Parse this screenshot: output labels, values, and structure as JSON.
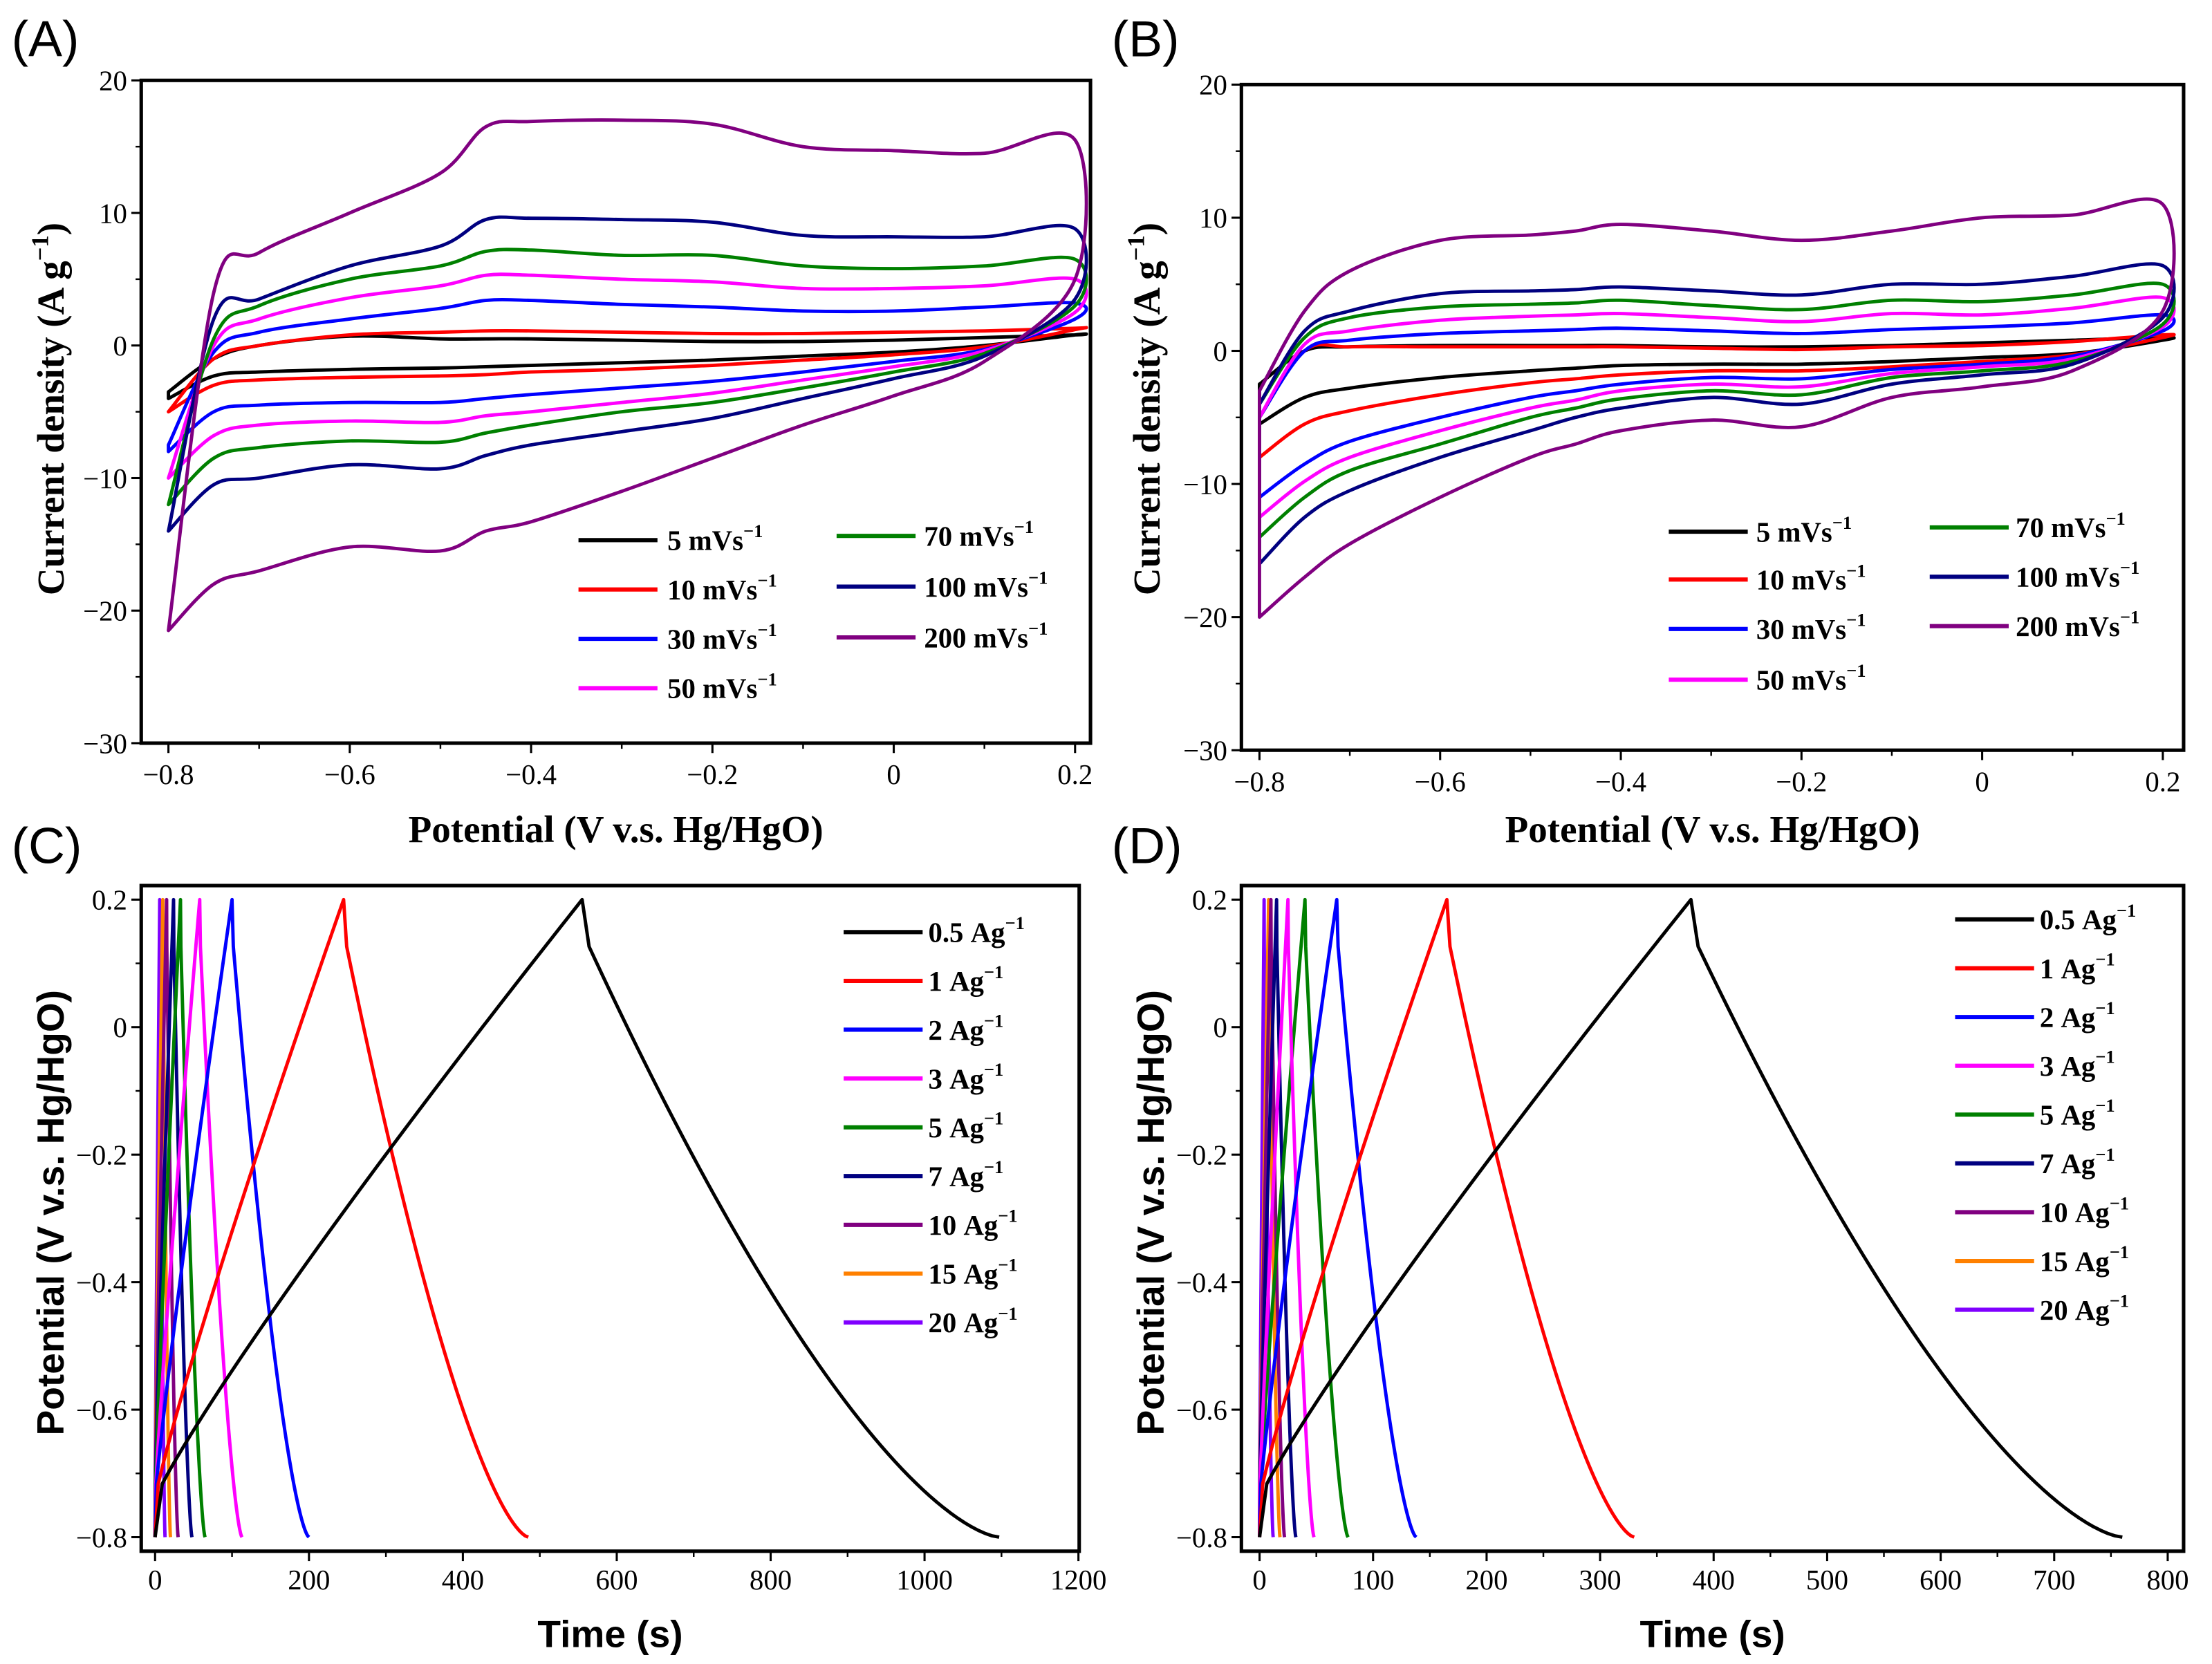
{
  "colors": {
    "black": "#000000",
    "red": "#ff0000",
    "blue": "#0000ff",
    "magenta": "#ff00ff",
    "green": "#008000",
    "navy": "#000080",
    "purple": "#800080",
    "orange": "#ff8000",
    "violet": "#8000ff"
  },
  "chart_data": [
    {
      "panel": "(A)",
      "type": "line",
      "xlabel": "Potential (V v.s. Hg/HgO)",
      "ylabel": {
        "text": "Current density (A g",
        "exp": "−1",
        "close": ")"
      },
      "xlim": [
        -0.83,
        0.217
      ],
      "ylim": [
        -30,
        20
      ],
      "xticks": [
        -0.8,
        -0.6,
        -0.4,
        -0.2,
        0,
        0.2
      ],
      "xtick_labels": [
        "−0.8",
        "−0.6",
        "−0.4",
        "−0.2",
        "0",
        "0.2"
      ],
      "yticks": [
        20,
        10,
        0,
        -10,
        -20,
        -30
      ],
      "ytick_labels": [
        "20",
        "10",
        "0",
        "−10",
        "−20",
        "−30"
      ],
      "potential_grid": [
        -0.8,
        -0.75,
        -0.7,
        -0.6,
        -0.5,
        -0.45,
        -0.4,
        -0.3,
        -0.2,
        -0.1,
        0,
        0.1,
        0.2
      ],
      "legend_columns": [
        [
          0,
          1,
          2,
          3
        ],
        [
          4,
          5,
          6
        ]
      ],
      "series": [
        {
          "name": "5",
          "unit": "mVs",
          "exp": "−1",
          "color": "#000000",
          "anodic": [
            -3.5,
            -1,
            0,
            0.7,
            0.5,
            0.5,
            0.5,
            0.4,
            0.3,
            0.3,
            0.4,
            0.6,
            0.8
          ],
          "cathodic": [
            -4,
            -2.3,
            -2,
            -1.8,
            -1.7,
            -1.6,
            -1.5,
            -1.3,
            -1.1,
            -0.8,
            -0.5,
            0,
            0.8
          ]
        },
        {
          "name": "10",
          "unit": "mVs",
          "exp": "−1",
          "color": "#ff0000",
          "anodic": [
            -5,
            -1,
            0,
            0.8,
            1,
            1.1,
            1.1,
            1,
            0.9,
            0.9,
            1,
            1.1,
            1.3
          ],
          "cathodic": [
            -5,
            -3,
            -2.6,
            -2.4,
            -2.3,
            -2.2,
            -2,
            -1.8,
            -1.5,
            -1.1,
            -0.7,
            -0.1,
            1.2
          ]
        },
        {
          "name": "30",
          "unit": "mVs",
          "exp": "−1",
          "color": "#0000ff",
          "anodic": [
            -7.5,
            -0.5,
            1,
            2,
            2.8,
            3.4,
            3.4,
            3.1,
            2.9,
            2.6,
            2.6,
            2.9,
            3.2
          ],
          "cathodic": [
            -8,
            -5,
            -4.5,
            -4.3,
            -4.3,
            -4,
            -3.7,
            -3.2,
            -2.7,
            -2,
            -1.2,
            -0.3,
            2
          ]
        },
        {
          "name": "50",
          "unit": "mVs",
          "exp": "−1",
          "color": "#ff00ff",
          "anodic": [
            -10,
            0,
            2,
            3.6,
            4.5,
            5.3,
            5.3,
            5,
            4.8,
            4.3,
            4.3,
            4.5,
            5
          ],
          "cathodic": [
            -10,
            -6.8,
            -6,
            -5.7,
            -5.8,
            -5.3,
            -5,
            -4.3,
            -3.6,
            -2.6,
            -1.6,
            -0.4,
            2.5
          ]
        },
        {
          "name": "70",
          "unit": "mVs",
          "exp": "−1",
          "color": "#008000",
          "anodic": [
            -12,
            0.5,
            3,
            5,
            6,
            7.1,
            7.2,
            6.8,
            6.8,
            6,
            5.8,
            6,
            6.5
          ],
          "cathodic": [
            -12,
            -8.5,
            -7.7,
            -7.2,
            -7.3,
            -6.6,
            -6,
            -5,
            -4.3,
            -3.2,
            -2,
            -0.6,
            3
          ]
        },
        {
          "name": "100",
          "unit": "mVs",
          "exp": "−1",
          "color": "#000080",
          "anodic": [
            -14,
            2,
            3.5,
            6,
            7.5,
            9.5,
            9.6,
            9.5,
            9.3,
            8.3,
            8.2,
            8.2,
            8.8
          ],
          "cathodic": [
            -14,
            -10.5,
            -10,
            -9,
            -9.3,
            -8.3,
            -7.5,
            -6.5,
            -5.5,
            -4,
            -2.5,
            -0.8,
            3.5
          ]
        },
        {
          "name": "200",
          "unit": "mVs",
          "exp": "−1",
          "color": "#800080",
          "anodic": [
            -21.5,
            4,
            7,
            10,
            13,
            16.5,
            16.9,
            17,
            16.7,
            15,
            14.7,
            14.5,
            15.5
          ],
          "cathodic": [
            -21.5,
            -18,
            -17,
            -15.2,
            -15.5,
            -14,
            -13.3,
            -11,
            -8.5,
            -6,
            -3.8,
            -1.2,
            5
          ]
        }
      ]
    },
    {
      "panel": "(B)",
      "type": "line",
      "xlabel": "Potential (V v.s. Hg/HgO)",
      "ylabel": {
        "text": "Current density (A g",
        "exp": "−1",
        "close": ")"
      },
      "xlim": [
        -0.82,
        0.223
      ],
      "ylim": [
        -30,
        20
      ],
      "xticks": [
        -0.8,
        -0.6,
        -0.4,
        -0.2,
        0,
        0.2
      ],
      "xtick_labels": [
        "−0.8",
        "−0.6",
        "−0.4",
        "−0.2",
        "0",
        "0.2"
      ],
      "yticks": [
        20,
        10,
        0,
        -10,
        -20,
        -30
      ],
      "ytick_labels": [
        "20",
        "10",
        "0",
        "−10",
        "−20",
        "−30"
      ],
      "potential_grid": [
        -0.8,
        -0.75,
        -0.7,
        -0.6,
        -0.5,
        -0.45,
        -0.4,
        -0.3,
        -0.2,
        -0.1,
        0,
        0.1,
        0.2
      ],
      "legend_columns": [
        [
          0,
          1,
          2,
          3
        ],
        [
          4,
          5,
          6
        ]
      ],
      "series": [
        {
          "name": "5",
          "unit": "mVs",
          "exp": "−1",
          "color": "#000000",
          "anodic": [
            -2.5,
            0,
            0.3,
            0.4,
            0.4,
            0.4,
            0.4,
            0.3,
            0.3,
            0.4,
            0.6,
            0.8,
            1
          ],
          "cathodic": [
            -5.5,
            -3.5,
            -2.8,
            -2,
            -1.5,
            -1.3,
            -1.1,
            -1,
            -1,
            -0.8,
            -0.5,
            -0.2,
            0.8
          ]
        },
        {
          "name": "10",
          "unit": "mVs",
          "exp": "−1",
          "color": "#ff0000",
          "anodic": [
            -5,
            0,
            0.3,
            0.3,
            0.3,
            0.3,
            0.3,
            0.2,
            0.1,
            0.3,
            0.4,
            0.7,
            1.2
          ],
          "cathodic": [
            -8,
            -5.5,
            -4.5,
            -3.3,
            -2.4,
            -2.1,
            -1.8,
            -1.5,
            -1.5,
            -1.2,
            -0.8,
            -0.3,
            1
          ]
        },
        {
          "name": "30",
          "unit": "mVs",
          "exp": "−1",
          "color": "#0000ff",
          "anodic": [
            -5,
            0,
            0.8,
            1.3,
            1.5,
            1.6,
            1.7,
            1.5,
            1.3,
            1.6,
            1.8,
            2.1,
            2.7
          ],
          "cathodic": [
            -11,
            -8.5,
            -6.8,
            -5,
            -3.5,
            -3,
            -2.5,
            -2,
            -2.1,
            -1.4,
            -1,
            -0.4,
            1.5
          ]
        },
        {
          "name": "50",
          "unit": "mVs",
          "exp": "−1",
          "color": "#ff00ff",
          "anodic": [
            -5,
            0.5,
            1.5,
            2.3,
            2.6,
            2.7,
            2.8,
            2.5,
            2.2,
            2.8,
            2.7,
            3.2,
            4
          ],
          "cathodic": [
            -12.5,
            -9.8,
            -8,
            -6,
            -4.3,
            -3.7,
            -3,
            -2.5,
            -2.7,
            -1.7,
            -1.2,
            -0.6,
            1.8
          ]
        },
        {
          "name": "70",
          "unit": "mVs",
          "exp": "−1",
          "color": "#008000",
          "anodic": [
            -4,
            1,
            2.5,
            3.3,
            3.5,
            3.6,
            3.8,
            3.4,
            3.1,
            3.8,
            3.7,
            4.2,
            5
          ],
          "cathodic": [
            -14,
            -11,
            -9,
            -7,
            -5,
            -4.3,
            -3.6,
            -3,
            -3.3,
            -2,
            -1.5,
            -0.8,
            2
          ]
        },
        {
          "name": "100",
          "unit": "mVs",
          "exp": "−1",
          "color": "#000080",
          "anodic": [
            -4,
            1.5,
            3,
            4.3,
            4.5,
            4.6,
            4.8,
            4.5,
            4.2,
            5,
            5,
            5.6,
            6.4
          ],
          "cathodic": [
            -16,
            -12.5,
            -10.5,
            -8,
            -6,
            -5,
            -4.3,
            -3.5,
            -4,
            -2.5,
            -1.8,
            -1,
            2.5
          ]
        },
        {
          "name": "200",
          "unit": "mVs",
          "exp": "−1",
          "color": "#800080",
          "anodic": [
            -3,
            3,
            6,
            8.3,
            8.7,
            9,
            9.5,
            9,
            8.3,
            9,
            10,
            10.2,
            11
          ],
          "cathodic": [
            -20,
            -17,
            -14.5,
            -11,
            -8,
            -7,
            -6,
            -5.2,
            -5.7,
            -3.5,
            -2.7,
            -1.5,
            3
          ]
        }
      ]
    },
    {
      "panel": "(C)",
      "type": "line",
      "xlabel": "Time (s)",
      "ylabel": {
        "text": "Potential (V v.s. Hg/HgO)",
        "exp": "",
        "close": ""
      },
      "xlim": [
        -18,
        1201
      ],
      "ylim": [
        -0.822,
        0.222
      ],
      "xticks": [
        0,
        200,
        400,
        600,
        800,
        1000,
        1200
      ],
      "xtick_labels": [
        "0",
        "200",
        "400",
        "600",
        "800",
        "1000",
        "1200"
      ],
      "yticks": [
        0.2,
        0,
        -0.2,
        -0.4,
        -0.6,
        -0.8
      ],
      "ytick_labels": [
        "0.2",
        "0",
        "−0.2",
        "−0.4",
        "−0.6",
        "−0.8"
      ],
      "potential_window_V": [
        -0.8,
        0.2
      ],
      "series": [
        {
          "name": "0.5",
          "unit": "Ag",
          "exp": "−1",
          "color": "#000000",
          "charge_end_s": 555,
          "discharge_end_s": 1097
        },
        {
          "name": "1",
          "unit": "Ag",
          "exp": "−1",
          "color": "#ff0000",
          "charge_end_s": 245,
          "discharge_end_s": 485
        },
        {
          "name": "2",
          "unit": "Ag",
          "exp": "−1",
          "color": "#0000ff",
          "charge_end_s": 100,
          "discharge_end_s": 200
        },
        {
          "name": "3",
          "unit": "Ag",
          "exp": "−1",
          "color": "#ff00ff",
          "charge_end_s": 58,
          "discharge_end_s": 113
        },
        {
          "name": "5",
          "unit": "Ag",
          "exp": "−1",
          "color": "#008000",
          "charge_end_s": 33,
          "discharge_end_s": 65
        },
        {
          "name": "7",
          "unit": "Ag",
          "exp": "−1",
          "color": "#000080",
          "charge_end_s": 24,
          "discharge_end_s": 48
        },
        {
          "name": "10",
          "unit": "Ag",
          "exp": "−1",
          "color": "#800080",
          "charge_end_s": 15,
          "discharge_end_s": 30
        },
        {
          "name": "15",
          "unit": "Ag",
          "exp": "−1",
          "color": "#ff8000",
          "charge_end_s": 10,
          "discharge_end_s": 20
        },
        {
          "name": "20",
          "unit": "Ag",
          "exp": "−1",
          "color": "#8000ff",
          "charge_end_s": 6,
          "discharge_end_s": 13
        }
      ]
    },
    {
      "panel": "(D)",
      "type": "line",
      "xlabel": "Time (s)",
      "ylabel": {
        "text": "Potential (V v.s. Hg/HgO)",
        "exp": "",
        "close": ""
      },
      "xlim": [
        -16,
        814
      ],
      "ylim": [
        -0.822,
        0.222
      ],
      "xticks": [
        0,
        100,
        200,
        300,
        400,
        500,
        600,
        700,
        800
      ],
      "xtick_labels": [
        "0",
        "100",
        "200",
        "300",
        "400",
        "500",
        "600",
        "700",
        "800"
      ],
      "yticks": [
        0.2,
        0,
        -0.2,
        -0.4,
        -0.6,
        -0.8
      ],
      "ytick_labels": [
        "0.2",
        "0",
        "−0.2",
        "−0.4",
        "−0.6",
        "−0.8"
      ],
      "potential_window_V": [
        -0.8,
        0.2
      ],
      "series": [
        {
          "name": "0.5",
          "unit": "Ag",
          "exp": "−1",
          "color": "#000000",
          "charge_end_s": 380,
          "discharge_end_s": 760
        },
        {
          "name": "1",
          "unit": "Ag",
          "exp": "−1",
          "color": "#ff0000",
          "charge_end_s": 165,
          "discharge_end_s": 330
        },
        {
          "name": "2",
          "unit": "Ag",
          "exp": "−1",
          "color": "#0000ff",
          "charge_end_s": 68,
          "discharge_end_s": 138
        },
        {
          "name": "3",
          "unit": "Ag",
          "exp": "−1",
          "color": "#ff00ff",
          "charge_end_s": 25,
          "discharge_end_s": 48
        },
        {
          "name": "5",
          "unit": "Ag",
          "exp": "−1",
          "color": "#008000",
          "charge_end_s": 40,
          "discharge_end_s": 78
        },
        {
          "name": "7",
          "unit": "Ag",
          "exp": "−1",
          "color": "#000080",
          "charge_end_s": 15,
          "discharge_end_s": 32
        },
        {
          "name": "10",
          "unit": "Ag",
          "exp": "−1",
          "color": "#800080",
          "charge_end_s": 10,
          "discharge_end_s": 22
        },
        {
          "name": "15",
          "unit": "Ag",
          "exp": "−1",
          "color": "#ff8000",
          "charge_end_s": 8,
          "discharge_end_s": 18
        },
        {
          "name": "20",
          "unit": "Ag",
          "exp": "−1",
          "color": "#8000ff",
          "charge_end_s": 4,
          "discharge_end_s": 12
        }
      ]
    }
  ]
}
